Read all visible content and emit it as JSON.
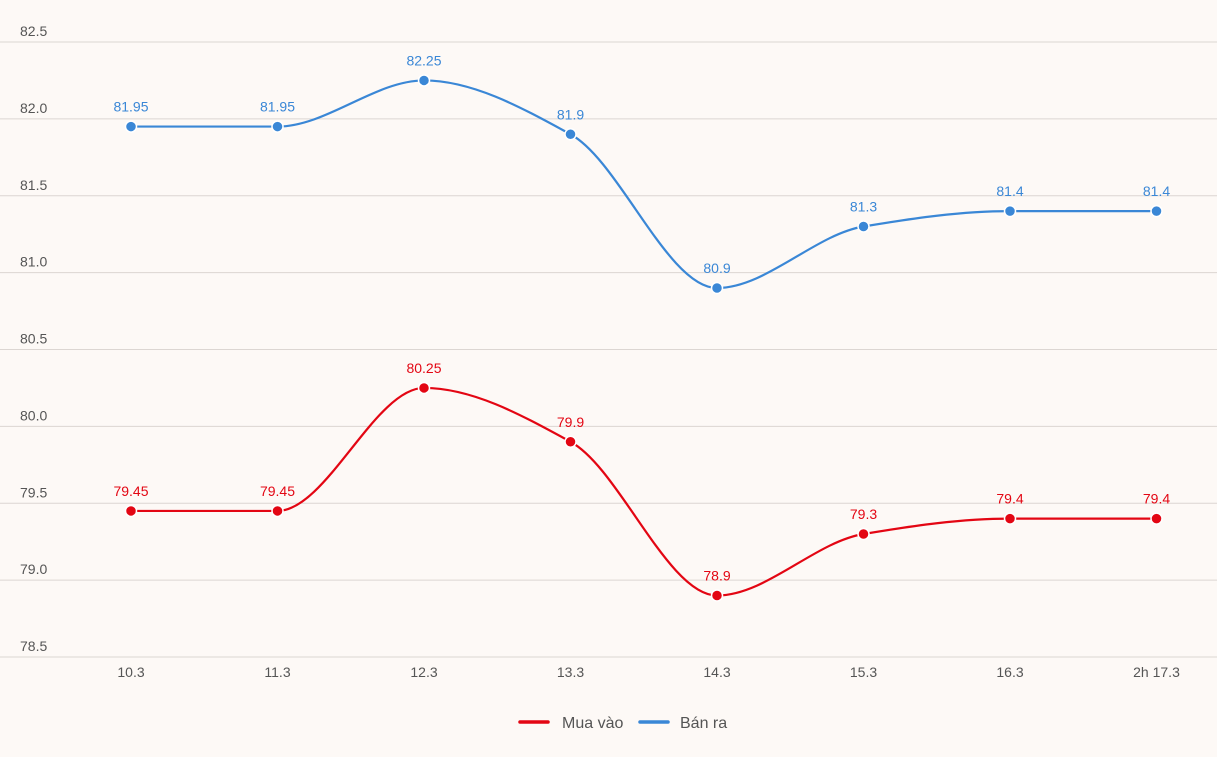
{
  "chart_data": {
    "type": "line",
    "categories": [
      "10.3",
      "11.3",
      "12.3",
      "13.3",
      "14.3",
      "15.3",
      "16.3",
      "2h 17.3"
    ],
    "series": [
      {
        "name": "Mua vào",
        "color": "#e30613",
        "values": [
          79.45,
          79.45,
          80.25,
          79.9,
          78.9,
          79.3,
          79.4,
          79.4
        ],
        "labels": [
          "79.45",
          "79.45",
          "80.25",
          "79.9",
          "78.9",
          "79.3",
          "79.4",
          "79.4"
        ]
      },
      {
        "name": "Bán ra",
        "color": "#3a87d6",
        "values": [
          81.95,
          81.95,
          82.25,
          81.9,
          80.9,
          81.3,
          81.4,
          81.4
        ],
        "labels": [
          "81.95",
          "81.95",
          "82.25",
          "81.9",
          "80.9",
          "81.3",
          "81.4",
          "81.4"
        ]
      }
    ],
    "y_ticks": [
      "78.5",
      "79.0",
      "79.5",
      "80.0",
      "80.5",
      "81.0",
      "81.5",
      "82.0",
      "82.5"
    ],
    "ylim": [
      78.5,
      82.5
    ],
    "grid": true,
    "legend_position": "bottom-center",
    "title": "",
    "xlabel": "",
    "ylabel": ""
  }
}
